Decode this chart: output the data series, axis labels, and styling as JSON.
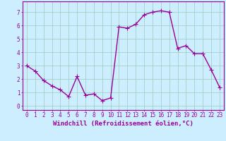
{
  "x": [
    0,
    1,
    2,
    3,
    4,
    5,
    6,
    7,
    8,
    9,
    10,
    11,
    12,
    13,
    14,
    15,
    16,
    17,
    18,
    19,
    20,
    21,
    22,
    23
  ],
  "y": [
    3.0,
    2.6,
    1.9,
    1.5,
    1.2,
    0.7,
    2.2,
    0.8,
    0.9,
    0.4,
    0.6,
    5.9,
    5.8,
    6.1,
    6.8,
    7.0,
    7.1,
    7.0,
    4.3,
    4.5,
    3.9,
    3.9,
    2.7,
    1.4
  ],
  "line_color": "#990099",
  "marker": "+",
  "marker_size": 4,
  "bg_color": "#cceeff",
  "grid_color": "#99ccbb",
  "xlabel": "Windchill (Refroidissement éolien,°C)",
  "xlabel_color": "#990099",
  "tick_color": "#990099",
  "ylabel_ticks": [
    0,
    1,
    2,
    3,
    4,
    5,
    6,
    7
  ],
  "xlim": [
    -0.5,
    23.5
  ],
  "ylim": [
    -0.3,
    7.8
  ],
  "xtick_labels": [
    "0",
    "1",
    "2",
    "3",
    "4",
    "5",
    "6",
    "7",
    "8",
    "9",
    "10",
    "11",
    "12",
    "13",
    "14",
    "15",
    "16",
    "17",
    "18",
    "19",
    "20",
    "21",
    "22",
    "23"
  ],
  "tick_fontsize": 5.5,
  "xlabel_fontsize": 6.5,
  "line_width": 1.0,
  "spine_color": "#990099"
}
